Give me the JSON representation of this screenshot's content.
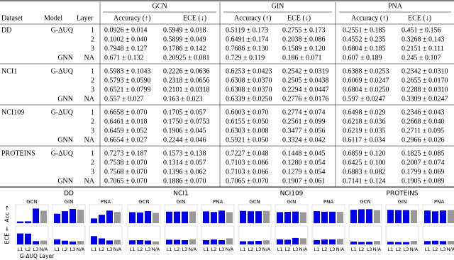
{
  "table": {
    "group_headers": [
      "GCN",
      "GIN",
      "PNA"
    ],
    "column_headers": [
      "Dataset",
      "Model",
      "Layer",
      "Accuracy (↑)",
      "ECE (↓)",
      "Accuracy (↑)",
      "ECE (↓)",
      "Accuracy (↑)",
      "ECE (↓)"
    ],
    "rows": [
      [
        "DD",
        "G-ΔUQ",
        1,
        "0.0926 ± 0.014",
        "0.5949 ± 0.018",
        "0.5119 ± 0.173",
        "0.2755 ± 0.173",
        "0.2551 ± 0.185",
        "0.451 ± 0.156"
      ],
      [
        null,
        null,
        2,
        "0.1002 ± 0.040",
        "0.5899 ± 0.049",
        "0.6491 ± 0.174",
        "0.2038 ± 0.086",
        "0.4552 ± 0.235",
        "0.3268 ± 0.143"
      ],
      [
        null,
        null,
        3,
        "0.7948 ± 0.127",
        "0.1786 ± 0.142",
        "0.7686 ± 0.130",
        "0.1589 ± 0.120",
        "0.6804 ± 0.185",
        "0.2151 ± 0.111"
      ],
      [
        null,
        "GNN",
        "NA",
        "0.671 ± 0.132",
        "0.20925 ± 0.081",
        "0.729 ± 0.119",
        "0.186 ± 0.071",
        "0.607 ± 0.189",
        "0.245 ± 0.107"
      ],
      [
        "NCI1",
        "G-ΔUQ",
        1,
        "0.5983 ± 0.1043",
        "0.2226 ± 0.0636",
        "0.6253 ± 0.0423",
        "0.2542 ± 0.0319",
        "0.6388 ± 0.0253",
        "0.2342 ± 0.0310"
      ],
      [
        null,
        null,
        2,
        "0.5793 ± 0.0590",
        "0.2318 ± 0.0656",
        "0.6308 ± 0.0370",
        "0.2505 ± 0.0438",
        "0.6069 ± 0.0247",
        "0.2655 ± 0.0170"
      ],
      [
        null,
        null,
        3,
        "0.6521 ± 0.0799",
        "0.2101 ± 0.0318",
        "0.6308 ± 0.0370",
        "0.2294 ± 0.0447",
        "0.6804 ± 0.0250",
        "0.2288 ± 0.0310"
      ],
      [
        null,
        "GNN",
        "NA",
        "0.557 ± 0.027",
        "0.163 ± 0.023",
        "0.6339 ± 0.0250",
        "0.2776 ± 0.0176",
        "0.597 ± 0.0247",
        "0.3309 ± 0.0247"
      ],
      [
        "NCI109",
        "G-ΔUQ",
        1,
        "0.6658 ± 0.070",
        "0.1705 ± 0.057",
        "0.6003 ± 0.070",
        "0.2774 ± 0.074",
        "0.6498 ± 0.029",
        "0.2346 ± 0.043"
      ],
      [
        null,
        null,
        2,
        "0.6461 ± 0.018",
        "0.1750 ± 0.0753",
        "0.6155 ± 0.050",
        "0.2561 ± 0.099",
        "0.6218 ± 0.036",
        "0.2668 ± 0.040"
      ],
      [
        null,
        null,
        3,
        "0.6459 ± 0.052",
        "0.1906 ± 0.045",
        "0.6303 ± 0.008",
        "0.3477 ± 0.056",
        "0.6219 ± 0.035",
        "0.2711 ± 0.095"
      ],
      [
        null,
        "GNN",
        "NA",
        "0.6654 ± 0.027",
        "0.2244 ± 0.046",
        "0.5921 ± 0.050",
        "0.3324 ± 0.042",
        "0.6117 ± 0.034",
        "0.2966 ± 0.026"
      ],
      [
        "PROTEINS",
        "G-ΔUQ",
        1,
        "0.7273 ± 0.187",
        "0.1573 ± 0.138",
        "0.7227 ± 0.048",
        "0.1448 ± 0.045",
        "0.6859 ± 0.120",
        "0.1825 ± 0.085"
      ],
      [
        null,
        null,
        2,
        "0.7538 ± 0.070",
        "0.1314 ± 0.057",
        "0.7103 ± 0.066",
        "0.1280 ± 0.054",
        "0.6425 ± 0.100",
        "0.2007 ± 0.074"
      ],
      [
        null,
        null,
        3,
        "0.7568 ± 0.070",
        "0.1396 ± 0.062",
        "0.7103 ± 0.066",
        "0.1279 ± 0.054",
        "0.6883 ± 0.082",
        "0.1799 ± 0.069"
      ],
      [
        null,
        "GNN",
        "NA",
        "0.7065 ± 0.070",
        "0.1886 ± 0.070",
        "0.7065 ± 0.070",
        "0.1907 ± 0.061",
        "0.7141 ± 0.124",
        "0.1905 ± 0.089"
      ]
    ]
  },
  "charts": {
    "acc_label": "Acc →",
    "ece_label": "ECE ←",
    "xlabel": "G-ΔUQ Layer",
    "bar_labels": [
      "L1",
      "L2",
      "L3",
      "N/A"
    ],
    "colors": [
      "#0000ee",
      "#0000ee",
      "#0000ee",
      "#999999"
    ],
    "ylim": [
      0,
      1
    ],
    "datasets": [
      {
        "title": "DD",
        "panels": [
          {
            "title": "GCN",
            "acc": [
              0.0926,
              0.1002,
              0.7948,
              0.671
            ],
            "ece": [
              0.5949,
              0.5899,
              0.1786,
              0.20925
            ]
          },
          {
            "title": "GIN",
            "acc": [
              0.5119,
              0.6491,
              0.7686,
              0.729
            ],
            "ece": [
              0.2755,
              0.2038,
              0.1589,
              0.186
            ]
          },
          {
            "title": "PNA",
            "acc": [
              0.2551,
              0.4552,
              0.6804,
              0.607
            ],
            "ece": [
              0.451,
              0.3268,
              0.2151,
              0.245
            ]
          }
        ]
      },
      {
        "title": "NCI1",
        "panels": [
          {
            "title": "GCN",
            "acc": [
              0.5983,
              0.5793,
              0.6521,
              0.557
            ],
            "ece": [
              0.2226,
              0.2318,
              0.2101,
              0.163
            ]
          },
          {
            "title": "GIN",
            "acc": [
              0.6253,
              0.6308,
              0.6308,
              0.6339
            ],
            "ece": [
              0.2542,
              0.2505,
              0.2294,
              0.2776
            ]
          },
          {
            "title": "PNA",
            "acc": [
              0.6388,
              0.6069,
              0.6804,
              0.597
            ],
            "ece": [
              0.2342,
              0.2655,
              0.2288,
              0.3309
            ]
          }
        ]
      },
      {
        "title": "NCI109",
        "panels": [
          {
            "title": "GCN",
            "acc": [
              0.6658,
              0.6461,
              0.6459,
              0.6654
            ],
            "ece": [
              0.1705,
              0.175,
              0.1906,
              0.2244
            ]
          },
          {
            "title": "GIN",
            "acc": [
              0.6003,
              0.6155,
              0.6303,
              0.5921
            ],
            "ece": [
              0.2774,
              0.2561,
              0.3477,
              0.3324
            ]
          },
          {
            "title": "PNA",
            "acc": [
              0.6498,
              0.6218,
              0.6219,
              0.6117
            ],
            "ece": [
              0.2346,
              0.2668,
              0.2711,
              0.2966
            ]
          }
        ]
      },
      {
        "title": "PROTEINS",
        "panels": [
          {
            "title": "GCN",
            "acc": [
              0.7273,
              0.7538,
              0.7568,
              0.7065
            ],
            "ece": [
              0.1573,
              0.1314,
              0.1396,
              0.1886
            ]
          },
          {
            "title": "GIN",
            "acc": [
              0.7227,
              0.7103,
              0.7103,
              0.7065
            ],
            "ece": [
              0.1448,
              0.128,
              0.1279,
              0.1907
            ]
          },
          {
            "title": "PNA",
            "acc": [
              0.6859,
              0.6425,
              0.6883,
              0.7141
            ],
            "ece": [
              0.1825,
              0.2007,
              0.1799,
              0.1905
            ]
          }
        ]
      }
    ]
  }
}
